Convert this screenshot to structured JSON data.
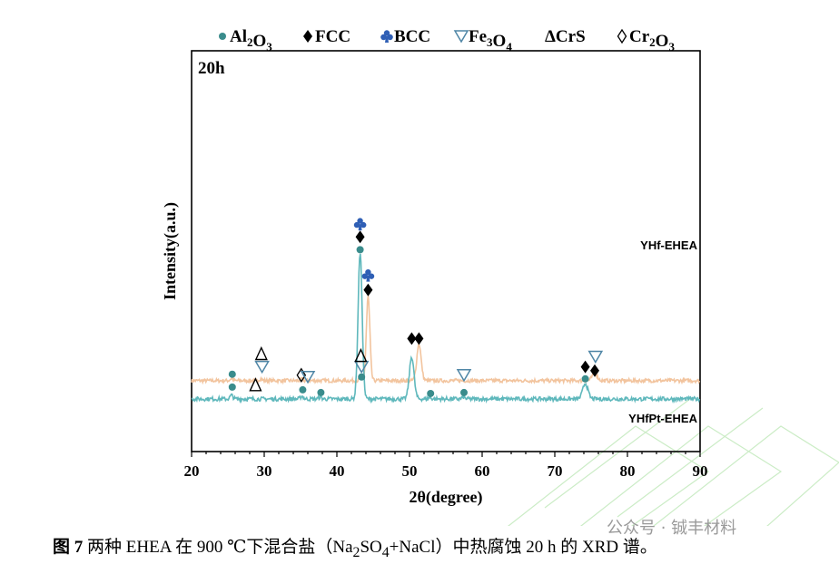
{
  "chart_data": {
    "type": "line",
    "panel_label": "20h",
    "xlabel": "2θ(degree)",
    "ylabel": "Intensity(a.u.)",
    "xlim": [
      20,
      90
    ],
    "xticks": [
      20,
      30,
      40,
      50,
      60,
      70,
      80,
      90
    ],
    "legend": [
      {
        "name": "Al2O3",
        "base": "Al",
        "sub1": "2",
        "mid": "O",
        "sub2": "3",
        "symbol": "circle",
        "color": "#3a8c8c"
      },
      {
        "name": "FCC",
        "base": "FCC",
        "symbol": "diamond",
        "color": "#000000"
      },
      {
        "name": "BCC",
        "base": "BCC",
        "symbol": "club",
        "color": "#2f5fb5"
      },
      {
        "name": "Fe3O4",
        "base": "Fe",
        "sub1": "3",
        "mid": "O",
        "sub2": "4",
        "symbol": "triangle-down",
        "color": "#4f86a6"
      },
      {
        "name": "CrS",
        "base": "ΔCrS",
        "symbol": "delta",
        "color": "#000000"
      },
      {
        "name": "Cr2O3",
        "base": "Cr",
        "sub1": "2",
        "mid": "O",
        "sub2": "3",
        "symbol": "diamond-open",
        "color": "#000000"
      }
    ],
    "series": [
      {
        "name": "YHf-EHEA",
        "color": "#f2c49e",
        "baseline": 1.0,
        "noise": 0.1,
        "peaks": [
          {
            "x": 25.5,
            "h": 0.12,
            "w": 0.18
          },
          {
            "x": 29.5,
            "h": 0.1,
            "w": 0.2
          },
          {
            "x": 35.2,
            "h": 0.08,
            "w": 0.2
          },
          {
            "x": 43.3,
            "h": 0.12,
            "w": 0.18
          },
          {
            "x": 44.3,
            "h": 4.6,
            "w": 0.24
          },
          {
            "x": 51.3,
            "h": 2.0,
            "w": 0.3
          },
          {
            "x": 75.5,
            "h": 0.4,
            "w": 0.35
          }
        ],
        "markers": [
          {
            "x": 25.6,
            "y": 1.35,
            "symbol": "circle"
          },
          {
            "x": 29.7,
            "y": 1.75,
            "symbol": "triangle-down"
          },
          {
            "x": 29.6,
            "y": 2.45,
            "symbol": "delta"
          },
          {
            "x": 35.1,
            "y": 1.3,
            "symbol": "diamond-open"
          },
          {
            "x": 36.0,
            "y": 1.2,
            "symbol": "triangle-down"
          },
          {
            "x": 43.4,
            "y": 1.2,
            "symbol": "circle"
          },
          {
            "x": 43.4,
            "y": 1.75,
            "symbol": "triangle-down"
          },
          {
            "x": 43.3,
            "y": 2.35,
            "symbol": "delta"
          },
          {
            "x": 44.3,
            "y": 5.95,
            "symbol": "diamond"
          },
          {
            "x": 44.3,
            "y": 6.75,
            "symbol": "club"
          },
          {
            "x": 51.3,
            "y": 3.3,
            "symbol": "diamond"
          },
          {
            "x": 57.5,
            "y": 1.3,
            "symbol": "triangle-down"
          },
          {
            "x": 75.5,
            "y": 1.55,
            "symbol": "diamond"
          },
          {
            "x": 75.6,
            "y": 2.3,
            "symbol": "triangle-down"
          }
        ]
      },
      {
        "name": "YHfPt-EHEA",
        "color": "#5fb8bc",
        "baseline": 0.0,
        "noise": 0.11,
        "peaks": [
          {
            "x": 25.5,
            "h": 0.2,
            "w": 0.2
          },
          {
            "x": 35.2,
            "h": 0.15,
            "w": 0.2
          },
          {
            "x": 37.7,
            "h": 0.1,
            "w": 0.2
          },
          {
            "x": 43.2,
            "h": 8.0,
            "w": 0.28
          },
          {
            "x": 50.3,
            "h": 2.3,
            "w": 0.32
          },
          {
            "x": 52.8,
            "h": 0.08,
            "w": 0.2
          },
          {
            "x": 57.4,
            "h": 0.1,
            "w": 0.2
          },
          {
            "x": 74.2,
            "h": 0.85,
            "w": 0.35
          }
        ],
        "markers": [
          {
            "x": 25.6,
            "y": 0.65,
            "symbol": "circle"
          },
          {
            "x": 28.8,
            "y": 0.75,
            "symbol": "delta"
          },
          {
            "x": 35.3,
            "y": 0.5,
            "symbol": "circle"
          },
          {
            "x": 37.8,
            "y": 0.35,
            "symbol": "circle"
          },
          {
            "x": 43.2,
            "y": 8.15,
            "symbol": "circle"
          },
          {
            "x": 43.2,
            "y": 8.85,
            "symbol": "diamond"
          },
          {
            "x": 43.2,
            "y": 9.55,
            "symbol": "club"
          },
          {
            "x": 50.3,
            "y": 3.3,
            "symbol": "diamond"
          },
          {
            "x": 52.9,
            "y": 0.3,
            "symbol": "circle"
          },
          {
            "x": 57.5,
            "y": 0.35,
            "symbol": "circle"
          },
          {
            "x": 74.2,
            "y": 1.1,
            "symbol": "circle"
          },
          {
            "x": 74.2,
            "y": 1.75,
            "symbol": "diamond"
          }
        ]
      }
    ]
  },
  "caption": {
    "figure_label": "图 7",
    "text_before": " 两种 EHEA 在 900 ℃下混合盐（Na",
    "sub_a": "2",
    "text_mid": "SO",
    "sub_b": "4",
    "text_after": "+NaCl）中热腐蚀 20 h 的 XRD 谱。"
  },
  "watermark": "公众号 · 铖丰材料"
}
